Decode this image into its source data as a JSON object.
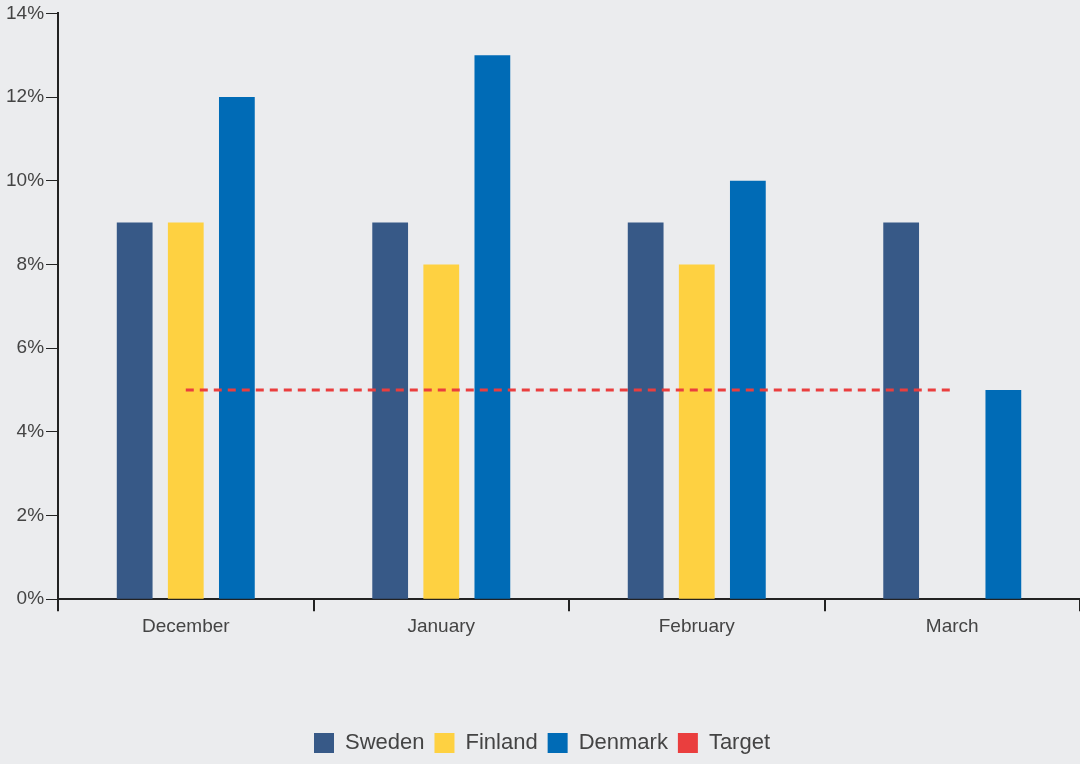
{
  "chart_data": {
    "type": "bar",
    "categories": [
      "December",
      "January",
      "February",
      "March"
    ],
    "series": [
      {
        "name": "Sweden",
        "color": "#375987",
        "values": [
          9,
          9,
          9,
          9
        ]
      },
      {
        "name": "Finland",
        "color": "#fed141",
        "values": [
          9,
          8,
          8,
          null
        ]
      },
      {
        "name": "Denmark",
        "color": "#006bb6",
        "values": [
          12,
          13,
          10,
          5
        ]
      },
      {
        "name": "Target",
        "type": "line",
        "color": "#ea3e3e",
        "line_style": "dashed",
        "marker": "none",
        "values": [
          5,
          5,
          5,
          5
        ]
      }
    ],
    "ylim": [
      0,
      14
    ],
    "yticks": [
      {
        "value": 0,
        "label": "0%"
      },
      {
        "value": 2,
        "label": "2%"
      },
      {
        "value": 4,
        "label": "4%"
      },
      {
        "value": 6,
        "label": "6%"
      },
      {
        "value": 8,
        "label": "8%"
      },
      {
        "value": 10,
        "label": "10%"
      },
      {
        "value": 12,
        "label": "12%"
      },
      {
        "value": 14,
        "label": "14%"
      }
    ],
    "grid": false,
    "legend": "bottom"
  }
}
